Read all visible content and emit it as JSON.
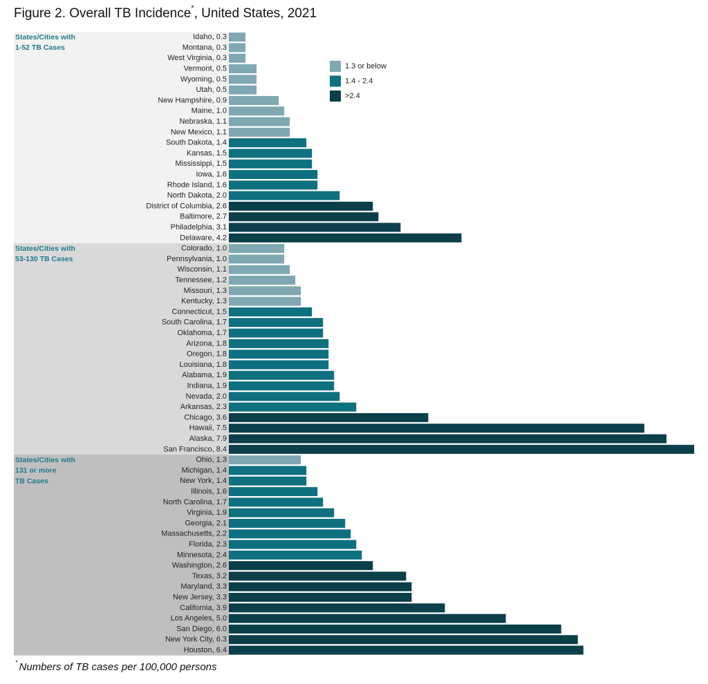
{
  "chart_data": {
    "type": "bar",
    "title": "Figure 2. Overall TB Incidence",
    "title_mark": "*",
    "title_suffix": ", United States, 2021",
    "footnote_mark": "*",
    "footnote": "Numbers of TB cases per 100,000 persons",
    "xlim": [
      0,
      8.4
    ],
    "legend": [
      {
        "name": "1.3 or below",
        "color": "#7fa8b2"
      },
      {
        "name": "1.4 - 2.4",
        "color": "#0f7080"
      },
      {
        "name": ">2.4",
        "color": "#0b3f4a"
      }
    ],
    "groups": [
      {
        "label": [
          "States/Cities with",
          "1-52 TB Cases"
        ],
        "background": "#f2f2f2",
        "categories": [
          "Idaho, 0.3",
          "Montana, 0.3",
          "West Virginia, 0.3",
          "Vermont, 0.5",
          "Wyoming, 0.5",
          "Utah, 0.5",
          "New Hampshire, 0.9",
          "Maine, 1.0",
          "Nebraska, 1.1",
          "New Mexico, 1.1",
          "South Dakota, 1.4",
          "Kansas, 1.5",
          "Mississippi, 1.5",
          "Iowa, 1.6",
          "Rhode Island, 1.6",
          "North Dakota, 2.0",
          "District of Columbia, 2.6",
          "Baltimore, 2.7",
          "Philadelphia, 3.1",
          "Delaware, 4.2"
        ],
        "values": [
          0.3,
          0.3,
          0.3,
          0.5,
          0.5,
          0.5,
          0.9,
          1.0,
          1.1,
          1.1,
          1.4,
          1.5,
          1.5,
          1.6,
          1.6,
          2.0,
          2.6,
          2.7,
          3.1,
          4.2
        ],
        "colors": [
          "#7fa8b2",
          "#7fa8b2",
          "#7fa8b2",
          "#7fa8b2",
          "#7fa8b2",
          "#7fa8b2",
          "#7fa8b2",
          "#7fa8b2",
          "#7fa8b2",
          "#7fa8b2",
          "#0f7080",
          "#0f7080",
          "#0f7080",
          "#0f7080",
          "#0f7080",
          "#0f7080",
          "#0b3f4a",
          "#0b3f4a",
          "#0b3f4a",
          "#0b3f4a"
        ]
      },
      {
        "label": [
          "States/Cities with",
          "53-130 TB Cases"
        ],
        "background": "#d9d9d9",
        "categories": [
          "Colorado, 1.0",
          "Pennsylvania, 1.0",
          "Wisconsin, 1.1",
          "Tennessee, 1.2",
          "Missouri, 1.3",
          "Kentucky, 1.3",
          "Connecticut, 1.5",
          "South Carolina, 1.7",
          "Oklahoma, 1.7",
          "Arizona, 1.8",
          "Oregon, 1.8",
          "Louisiana, 1.8",
          "Alabama, 1.9",
          "Indiana, 1.9",
          "Nevada, 2.0",
          "Arkansas, 2.3",
          "Chicago, 3.6",
          "Hawaii, 7.5",
          "Alaska, 7.9",
          "San Francisco, 8.4"
        ],
        "values": [
          1.0,
          1.0,
          1.1,
          1.2,
          1.3,
          1.3,
          1.5,
          1.7,
          1.7,
          1.8,
          1.8,
          1.8,
          1.9,
          1.9,
          2.0,
          2.3,
          3.6,
          7.5,
          7.9,
          8.4
        ],
        "colors": [
          "#7fa8b2",
          "#7fa8b2",
          "#7fa8b2",
          "#7fa8b2",
          "#7fa8b2",
          "#7fa8b2",
          "#0f7080",
          "#0f7080",
          "#0f7080",
          "#0f7080",
          "#0f7080",
          "#0f7080",
          "#0f7080",
          "#0f7080",
          "#0f7080",
          "#0f7080",
          "#0b3f4a",
          "#0b3f4a",
          "#0b3f4a",
          "#0b3f4a"
        ]
      },
      {
        "label": [
          "States/Cities with",
          "131 or more",
          "TB Cases"
        ],
        "background": "#bfbfbf",
        "categories": [
          "Ohio, 1.3",
          "Michigan, 1.4",
          "New York, 1.4",
          "Illinois, 1.6",
          "North Carolina, 1.7",
          "Virginia, 1.9",
          "Georgia, 2.1",
          "Massachusetts, 2.2",
          "Florida, 2.3",
          "Minnesota, 2.4",
          "Washington, 2.6",
          "Texas, 3.2",
          "Maryland, 3.3",
          "New Jersey, 3.3",
          "California, 3.9",
          "Los Angeles, 5.0",
          "San Diego, 6.0",
          "New York City, 6.3",
          "Houston, 6.4"
        ],
        "values": [
          1.3,
          1.4,
          1.4,
          1.6,
          1.7,
          1.9,
          2.1,
          2.2,
          2.3,
          2.4,
          2.6,
          3.2,
          3.3,
          3.3,
          3.9,
          5.0,
          6.0,
          6.3,
          6.4
        ],
        "colors": [
          "#7fa8b2",
          "#0f7080",
          "#0f7080",
          "#0f7080",
          "#0f7080",
          "#0f7080",
          "#0f7080",
          "#0f7080",
          "#0f7080",
          "#0f7080",
          "#0b3f4a",
          "#0b3f4a",
          "#0b3f4a",
          "#0b3f4a",
          "#0b3f4a",
          "#0b3f4a",
          "#0b3f4a",
          "#0b3f4a",
          "#0b3f4a"
        ]
      }
    ]
  }
}
